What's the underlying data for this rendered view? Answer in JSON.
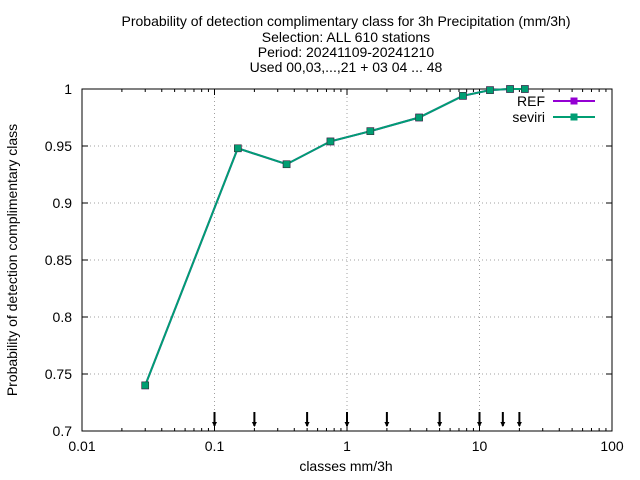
{
  "chart_data": {
    "type": "line",
    "title": [
      "Probability of detection complimentary class  for 3h Precipitation (mm/3h)",
      "Selection: ALL    610 stations",
      "Period: 20241109-20241210",
      "Used 00,03,...,21 + 03 04  ... 48"
    ],
    "xlabel": "classes mm/3h",
    "ylabel": "Probability of detection complimentary class",
    "xscale": "log",
    "xlim": [
      0.01,
      100
    ],
    "ylim": [
      0.7,
      1.0
    ],
    "xticks": [
      0.01,
      0.1,
      1,
      10,
      100
    ],
    "xticklabels": [
      "0.01",
      "0.1",
      "1",
      "10",
      "100"
    ],
    "yticks": [
      0.7,
      0.75,
      0.8,
      0.85,
      0.9,
      0.95,
      1.0
    ],
    "yticklabels": [
      "0.7",
      "0.75",
      "0.8",
      "0.85",
      "0.9",
      "0.95",
      "1"
    ],
    "grid": true,
    "legend_position": "top-right",
    "threshold_markers": [
      0.1,
      0.2,
      0.5,
      1,
      2,
      5,
      10,
      15,
      20
    ],
    "series": [
      {
        "name": "REF",
        "color": "#9400d3",
        "x": [
          0.03,
          0.15,
          0.35,
          0.75,
          1.5,
          3.5,
          7.5,
          12,
          17,
          22
        ],
        "y": [
          0.74,
          0.948,
          0.934,
          0.954,
          0.963,
          0.975,
          0.994,
          0.999,
          1.0,
          1.0
        ]
      },
      {
        "name": "seviri",
        "color": "#009e73",
        "x": [
          0.03,
          0.15,
          0.35,
          0.75,
          1.5,
          3.5,
          7.5,
          12,
          17,
          22
        ],
        "y": [
          0.74,
          0.948,
          0.934,
          0.954,
          0.963,
          0.975,
          0.994,
          0.999,
          1.0,
          1.0
        ]
      }
    ]
  }
}
